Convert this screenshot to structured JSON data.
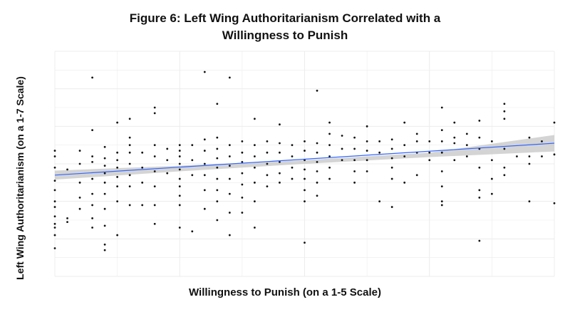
{
  "chart_data": {
    "type": "scatter",
    "title_lines": [
      "Figure 6: Left Wing Authoritarianism Correlated with a",
      "Willingness to Punish"
    ],
    "xlabel": "Willingness to Punish (on a 1-5 Scale)",
    "ylabel": "Left Wing Authoritarianism (on a 1-7 Scale)",
    "xlim": [
      1,
      5
    ],
    "ylim": [
      1,
      7
    ],
    "grid": true,
    "tick_labels_visible": false,
    "colors": {
      "points": "#111111",
      "fit_line": "#3366ff",
      "confidence_band": "#cccccc",
      "grid": "#ececec"
    },
    "fit_line": {
      "x": [
        1,
        5
      ],
      "y": [
        3.7,
        4.55
      ]
    },
    "confidence_band": {
      "x": [
        1,
        2,
        3,
        4,
        5
      ],
      "lower": [
        3.58,
        3.8,
        4.0,
        4.18,
        4.33
      ],
      "upper": [
        3.82,
        3.95,
        4.1,
        4.3,
        4.77
      ]
    },
    "points": [
      {
        "x": 1.0,
        "y": 4.35
      },
      {
        "x": 1.0,
        "y": 4.2
      },
      {
        "x": 1.0,
        "y": 3.9
      },
      {
        "x": 1.0,
        "y": 3.55
      },
      {
        "x": 1.0,
        "y": 3.3
      },
      {
        "x": 1.0,
        "y": 3.0
      },
      {
        "x": 1.0,
        "y": 2.85
      },
      {
        "x": 1.0,
        "y": 2.6
      },
      {
        "x": 1.0,
        "y": 2.4
      },
      {
        "x": 1.0,
        "y": 2.3
      },
      {
        "x": 1.0,
        "y": 2.1
      },
      {
        "x": 1.0,
        "y": 1.75
      },
      {
        "x": 1.1,
        "y": 3.85
      },
      {
        "x": 1.1,
        "y": 2.55
      },
      {
        "x": 1.1,
        "y": 2.45
      },
      {
        "x": 1.2,
        "y": 4.35
      },
      {
        "x": 1.2,
        "y": 4.0
      },
      {
        "x": 1.2,
        "y": 3.5
      },
      {
        "x": 1.2,
        "y": 3.1
      },
      {
        "x": 1.2,
        "y": 2.8
      },
      {
        "x": 1.3,
        "y": 6.3
      },
      {
        "x": 1.3,
        "y": 4.9
      },
      {
        "x": 1.3,
        "y": 4.2
      },
      {
        "x": 1.3,
        "y": 4.05
      },
      {
        "x": 1.3,
        "y": 3.6
      },
      {
        "x": 1.3,
        "y": 3.2
      },
      {
        "x": 1.3,
        "y": 2.9
      },
      {
        "x": 1.3,
        "y": 2.55
      },
      {
        "x": 1.3,
        "y": 2.3
      },
      {
        "x": 1.4,
        "y": 4.45
      },
      {
        "x": 1.4,
        "y": 4.15
      },
      {
        "x": 1.4,
        "y": 3.95
      },
      {
        "x": 1.4,
        "y": 3.75
      },
      {
        "x": 1.4,
        "y": 3.5
      },
      {
        "x": 1.4,
        "y": 3.2
      },
      {
        "x": 1.4,
        "y": 2.8
      },
      {
        "x": 1.4,
        "y": 2.35
      },
      {
        "x": 1.4,
        "y": 1.85
      },
      {
        "x": 1.4,
        "y": 1.7
      },
      {
        "x": 1.5,
        "y": 5.1
      },
      {
        "x": 1.5,
        "y": 4.3
      },
      {
        "x": 1.5,
        "y": 4.1
      },
      {
        "x": 1.5,
        "y": 3.9
      },
      {
        "x": 1.5,
        "y": 3.65
      },
      {
        "x": 1.5,
        "y": 3.4
      },
      {
        "x": 1.5,
        "y": 3.0
      },
      {
        "x": 1.5,
        "y": 2.1
      },
      {
        "x": 1.6,
        "y": 5.2
      },
      {
        "x": 1.6,
        "y": 4.7
      },
      {
        "x": 1.6,
        "y": 4.5
      },
      {
        "x": 1.6,
        "y": 4.3
      },
      {
        "x": 1.6,
        "y": 4.0
      },
      {
        "x": 1.6,
        "y": 3.7
      },
      {
        "x": 1.6,
        "y": 3.4
      },
      {
        "x": 1.6,
        "y": 2.9
      },
      {
        "x": 1.7,
        "y": 4.3
      },
      {
        "x": 1.7,
        "y": 3.9
      },
      {
        "x": 1.7,
        "y": 3.5
      },
      {
        "x": 1.7,
        "y": 2.9
      },
      {
        "x": 1.8,
        "y": 5.5
      },
      {
        "x": 1.8,
        "y": 5.35
      },
      {
        "x": 1.8,
        "y": 4.5
      },
      {
        "x": 1.8,
        "y": 4.2
      },
      {
        "x": 1.8,
        "y": 3.8
      },
      {
        "x": 1.8,
        "y": 3.4
      },
      {
        "x": 1.8,
        "y": 2.9
      },
      {
        "x": 1.8,
        "y": 2.4
      },
      {
        "x": 1.9,
        "y": 4.4
      },
      {
        "x": 1.9,
        "y": 4.1
      },
      {
        "x": 1.9,
        "y": 3.75
      },
      {
        "x": 2.0,
        "y": 4.5
      },
      {
        "x": 2.0,
        "y": 4.35
      },
      {
        "x": 2.0,
        "y": 4.2
      },
      {
        "x": 2.0,
        "y": 4.0
      },
      {
        "x": 2.0,
        "y": 3.85
      },
      {
        "x": 2.0,
        "y": 3.6
      },
      {
        "x": 2.0,
        "y": 3.4
      },
      {
        "x": 2.0,
        "y": 3.15
      },
      {
        "x": 2.0,
        "y": 2.9
      },
      {
        "x": 2.0,
        "y": 2.3
      },
      {
        "x": 2.1,
        "y": 4.5
      },
      {
        "x": 2.1,
        "y": 4.1
      },
      {
        "x": 2.1,
        "y": 3.7
      },
      {
        "x": 2.1,
        "y": 2.2
      },
      {
        "x": 2.2,
        "y": 6.45
      },
      {
        "x": 2.2,
        "y": 4.65
      },
      {
        "x": 2.2,
        "y": 4.35
      },
      {
        "x": 2.2,
        "y": 4.0
      },
      {
        "x": 2.2,
        "y": 3.7
      },
      {
        "x": 2.2,
        "y": 3.3
      },
      {
        "x": 2.2,
        "y": 2.8
      },
      {
        "x": 2.3,
        "y": 5.6
      },
      {
        "x": 2.3,
        "y": 4.7
      },
      {
        "x": 2.3,
        "y": 4.4
      },
      {
        "x": 2.3,
        "y": 4.15
      },
      {
        "x": 2.3,
        "y": 3.9
      },
      {
        "x": 2.3,
        "y": 3.6
      },
      {
        "x": 2.3,
        "y": 3.3
      },
      {
        "x": 2.3,
        "y": 3.0
      },
      {
        "x": 2.3,
        "y": 2.5
      },
      {
        "x": 2.4,
        "y": 6.3
      },
      {
        "x": 2.4,
        "y": 4.5
      },
      {
        "x": 2.4,
        "y": 4.2
      },
      {
        "x": 2.4,
        "y": 3.95
      },
      {
        "x": 2.4,
        "y": 3.6
      },
      {
        "x": 2.4,
        "y": 3.2
      },
      {
        "x": 2.4,
        "y": 2.7
      },
      {
        "x": 2.4,
        "y": 2.1
      },
      {
        "x": 2.5,
        "y": 4.6
      },
      {
        "x": 2.5,
        "y": 4.3
      },
      {
        "x": 2.5,
        "y": 4.05
      },
      {
        "x": 2.5,
        "y": 3.75
      },
      {
        "x": 2.5,
        "y": 3.45
      },
      {
        "x": 2.5,
        "y": 3.1
      },
      {
        "x": 2.5,
        "y": 2.7
      },
      {
        "x": 2.6,
        "y": 5.2
      },
      {
        "x": 2.6,
        "y": 4.5
      },
      {
        "x": 2.6,
        "y": 4.2
      },
      {
        "x": 2.6,
        "y": 3.9
      },
      {
        "x": 2.6,
        "y": 3.5
      },
      {
        "x": 2.6,
        "y": 3.0
      },
      {
        "x": 2.6,
        "y": 2.3
      },
      {
        "x": 2.7,
        "y": 4.6
      },
      {
        "x": 2.7,
        "y": 4.3
      },
      {
        "x": 2.7,
        "y": 4.0
      },
      {
        "x": 2.7,
        "y": 3.7
      },
      {
        "x": 2.7,
        "y": 3.4
      },
      {
        "x": 2.8,
        "y": 5.05
      },
      {
        "x": 2.8,
        "y": 4.55
      },
      {
        "x": 2.8,
        "y": 4.3
      },
      {
        "x": 2.8,
        "y": 4.05
      },
      {
        "x": 2.8,
        "y": 3.75
      },
      {
        "x": 2.8,
        "y": 3.5
      },
      {
        "x": 2.9,
        "y": 4.5
      },
      {
        "x": 2.9,
        "y": 4.2
      },
      {
        "x": 2.9,
        "y": 3.9
      },
      {
        "x": 2.9,
        "y": 3.6
      },
      {
        "x": 3.0,
        "y": 4.6
      },
      {
        "x": 3.0,
        "y": 4.35
      },
      {
        "x": 3.0,
        "y": 4.1
      },
      {
        "x": 3.0,
        "y": 3.85
      },
      {
        "x": 3.0,
        "y": 3.6
      },
      {
        "x": 3.0,
        "y": 3.3
      },
      {
        "x": 3.0,
        "y": 3.0
      },
      {
        "x": 3.0,
        "y": 1.9
      },
      {
        "x": 3.1,
        "y": 5.95
      },
      {
        "x": 3.1,
        "y": 4.55
      },
      {
        "x": 3.1,
        "y": 4.3
      },
      {
        "x": 3.1,
        "y": 4.05
      },
      {
        "x": 3.1,
        "y": 3.8
      },
      {
        "x": 3.1,
        "y": 3.5
      },
      {
        "x": 3.1,
        "y": 3.15
      },
      {
        "x": 3.2,
        "y": 5.1
      },
      {
        "x": 3.2,
        "y": 4.8
      },
      {
        "x": 3.2,
        "y": 4.5
      },
      {
        "x": 3.2,
        "y": 4.2
      },
      {
        "x": 3.2,
        "y": 3.9
      },
      {
        "x": 3.2,
        "y": 3.6
      },
      {
        "x": 3.3,
        "y": 4.75
      },
      {
        "x": 3.3,
        "y": 4.4
      },
      {
        "x": 3.3,
        "y": 4.1
      },
      {
        "x": 3.4,
        "y": 4.7
      },
      {
        "x": 3.4,
        "y": 4.4
      },
      {
        "x": 3.4,
        "y": 4.1
      },
      {
        "x": 3.4,
        "y": 3.8
      },
      {
        "x": 3.4,
        "y": 3.5
      },
      {
        "x": 3.5,
        "y": 5.0
      },
      {
        "x": 3.5,
        "y": 4.6
      },
      {
        "x": 3.5,
        "y": 4.35
      },
      {
        "x": 3.5,
        "y": 4.1
      },
      {
        "x": 3.5,
        "y": 3.8
      },
      {
        "x": 3.6,
        "y": 4.6
      },
      {
        "x": 3.6,
        "y": 4.3
      },
      {
        "x": 3.6,
        "y": 3.0
      },
      {
        "x": 3.7,
        "y": 4.65
      },
      {
        "x": 3.7,
        "y": 4.4
      },
      {
        "x": 3.7,
        "y": 4.15
      },
      {
        "x": 3.7,
        "y": 3.9
      },
      {
        "x": 3.7,
        "y": 3.6
      },
      {
        "x": 3.7,
        "y": 2.85
      },
      {
        "x": 3.8,
        "y": 5.1
      },
      {
        "x": 3.8,
        "y": 4.5
      },
      {
        "x": 3.8,
        "y": 4.2
      },
      {
        "x": 3.8,
        "y": 3.5
      },
      {
        "x": 3.9,
        "y": 4.8
      },
      {
        "x": 3.9,
        "y": 4.6
      },
      {
        "x": 3.9,
        "y": 4.3
      },
      {
        "x": 3.9,
        "y": 3.7
      },
      {
        "x": 4.0,
        "y": 4.6
      },
      {
        "x": 4.0,
        "y": 4.3
      },
      {
        "x": 4.0,
        "y": 4.1
      },
      {
        "x": 4.1,
        "y": 5.5
      },
      {
        "x": 4.1,
        "y": 4.9
      },
      {
        "x": 4.1,
        "y": 4.6
      },
      {
        "x": 4.1,
        "y": 4.3
      },
      {
        "x": 4.1,
        "y": 3.8
      },
      {
        "x": 4.1,
        "y": 3.4
      },
      {
        "x": 4.1,
        "y": 3.0
      },
      {
        "x": 4.1,
        "y": 2.9
      },
      {
        "x": 4.2,
        "y": 5.1
      },
      {
        "x": 4.2,
        "y": 4.7
      },
      {
        "x": 4.2,
        "y": 4.55
      },
      {
        "x": 4.2,
        "y": 4.1
      },
      {
        "x": 4.3,
        "y": 4.8
      },
      {
        "x": 4.3,
        "y": 4.5
      },
      {
        "x": 4.3,
        "y": 4.2
      },
      {
        "x": 4.4,
        "y": 5.15
      },
      {
        "x": 4.4,
        "y": 4.7
      },
      {
        "x": 4.4,
        "y": 4.4
      },
      {
        "x": 4.4,
        "y": 3.9
      },
      {
        "x": 4.4,
        "y": 3.3
      },
      {
        "x": 4.4,
        "y": 3.1
      },
      {
        "x": 4.4,
        "y": 1.95
      },
      {
        "x": 4.5,
        "y": 4.6
      },
      {
        "x": 4.5,
        "y": 4.1
      },
      {
        "x": 4.5,
        "y": 3.6
      },
      {
        "x": 4.5,
        "y": 3.2
      },
      {
        "x": 4.6,
        "y": 5.6
      },
      {
        "x": 4.6,
        "y": 5.4
      },
      {
        "x": 4.6,
        "y": 5.2
      },
      {
        "x": 4.6,
        "y": 4.4
      },
      {
        "x": 4.6,
        "y": 3.9
      },
      {
        "x": 4.6,
        "y": 3.7
      },
      {
        "x": 4.7,
        "y": 4.2
      },
      {
        "x": 4.8,
        "y": 4.7
      },
      {
        "x": 4.8,
        "y": 4.2
      },
      {
        "x": 4.8,
        "y": 4.0
      },
      {
        "x": 4.8,
        "y": 3.0
      },
      {
        "x": 4.9,
        "y": 4.6
      },
      {
        "x": 4.9,
        "y": 4.2
      },
      {
        "x": 5.0,
        "y": 5.1
      },
      {
        "x": 5.0,
        "y": 4.25
      },
      {
        "x": 5.0,
        "y": 2.95
      }
    ]
  }
}
